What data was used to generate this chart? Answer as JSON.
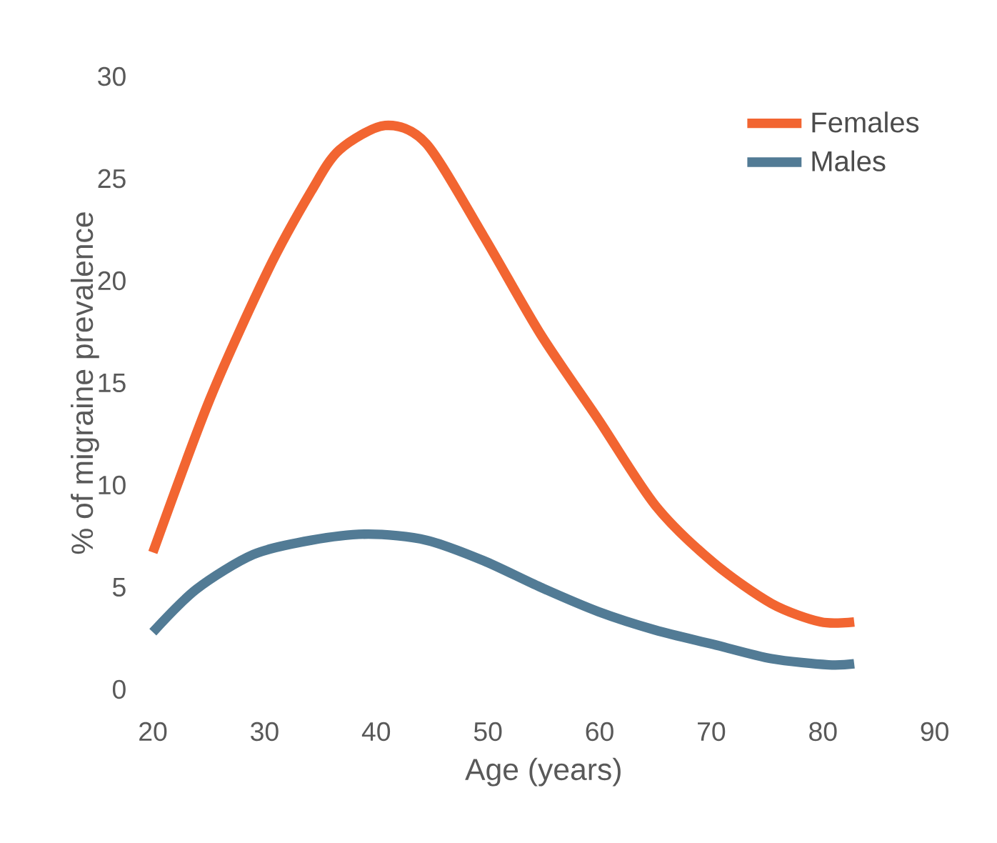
{
  "chart_data": {
    "type": "line",
    "xlabel": "Age (years)",
    "ylabel": "% of migraine prevalence",
    "xlim": [
      20,
      90
    ],
    "ylim": [
      0,
      30
    ],
    "xticks": [
      20,
      30,
      40,
      50,
      60,
      70,
      80,
      90
    ],
    "yticks": [
      0,
      5,
      10,
      15,
      20,
      25,
      30
    ],
    "grid": false,
    "legend": "top right",
    "marker": "none",
    "line_style": "solid",
    "series": [
      {
        "name": "Females",
        "color": "#f26531",
        "x": [
          20,
          25.1,
          30.3,
          34.2,
          36.7,
          40.8,
          44.5,
          49.6,
          54.7,
          59.9,
          65,
          70.2,
          75.4,
          79.8,
          82.8
        ],
        "values": [
          6.7,
          14.2,
          20.5,
          24.4,
          26.4,
          27.6,
          26.7,
          22.2,
          17.4,
          13.2,
          9,
          6.2,
          4.2,
          3.3,
          3.3
        ]
      },
      {
        "name": "Males",
        "color": "#527b95",
        "x": [
          20,
          23.9,
          29,
          34.2,
          39.3,
          44.5,
          49.6,
          54.7,
          59.9,
          65,
          70.2,
          75.4,
          80.5,
          82.8
        ],
        "values": [
          2.8,
          4.9,
          6.6,
          7.3,
          7.6,
          7.3,
          6.3,
          5,
          3.8,
          2.9,
          2.2,
          1.5,
          1.2,
          1.25
        ]
      }
    ]
  }
}
